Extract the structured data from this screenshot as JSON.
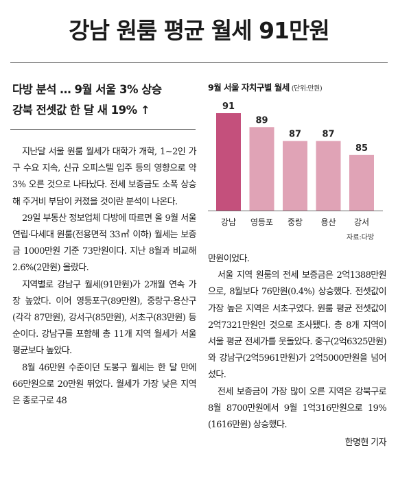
{
  "headline": "강남 원룸 평균 월세 91만원",
  "subhead": {
    "line1": "다방 분석 … 9월 서울 3% 상승",
    "line2": "강북 전셋값 한 달 새 19% ↑"
  },
  "body_left": [
    "지난달 서울 원룸 월세가 대학가 개학, 1~2인 가구 수요 지속, 신규 오피스텔 입주 등의 영향으로 약 3% 오른 것으로 나타났다. 전세 보증금도 소폭 상승해 주거비 부담이 커졌을 것이란 분석이 나온다.",
    "29일 부동산 정보업체 다방에 따르면 올 9월 서울 연립·다세대 원룸(전용면적 33㎡ 이하) 월세는 보증금 1000만원 기준 73만원이다. 지난 8월과 비교해 2.6%(2만원) 올랐다.",
    "지역별로 강남구 월세(91만원)가 2개월 연속 가장 높았다. 이어 영등포구(89만원), 중랑구·용산구(각각 87만원), 강서구(85만원), 서초구(83만원) 등 순이다. 강남구를 포함해 총 11개 지역 월세가 서울 평균보다 높았다.",
    "8월 46만원 수준이던 도봉구 월세는 한 달 만에 66만원으로 20만원 뛰었다. 월세가 가장 낮은 지역은 종로구로 48"
  ],
  "body_right": [
    "만원이었다.",
    "서울 지역 원룸의 전세 보증금은 2억1388만원으로, 8월보다 76만원(0.4%) 상승했다. 전셋값이 가장 높은 지역은 서초구였다. 원룸 평균 전셋값이 2억7321만원인 것으로 조사됐다. 총 8개 지역이 서울 평균 전세가를 웃돌았다. 중구(2억6325만원)와 강남구(2억5961만원)가 2억5000만원을 넘어섰다.",
    "전세 보증금이 가장 많이 오른 지역은 강북구로 8월 8700만원에서 9월 1억316만원으로 19%(1616만원) 상승했다."
  ],
  "byline": "한명현 기자",
  "chart_data": {
    "type": "bar",
    "title": "9월 서울 자치구별 월세",
    "unit": "(단위:만원)",
    "categories": [
      "강남",
      "영등포",
      "중랑",
      "용산",
      "강서"
    ],
    "values": [
      91,
      89,
      87,
      87,
      85
    ],
    "ylim": [
      77,
      91
    ],
    "source": "자료:다방",
    "colors": {
      "highlight": "#c4507c",
      "bar": "#e0a3b6"
    }
  }
}
